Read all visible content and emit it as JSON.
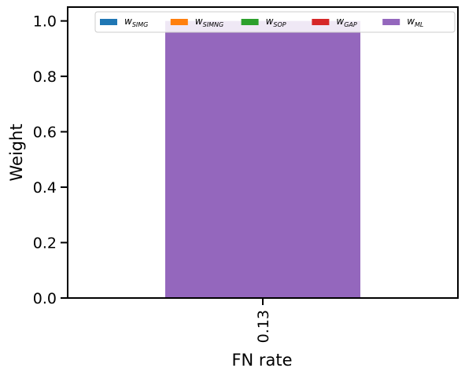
{
  "chart_data": {
    "type": "bar",
    "stacked": true,
    "categories": [
      "0.13"
    ],
    "series": [
      {
        "name": "SIMG",
        "values": [
          0
        ],
        "color": "#1f77b4"
      },
      {
        "name": "SIMNG",
        "values": [
          0
        ],
        "color": "#ff7f0e"
      },
      {
        "name": "SOP",
        "values": [
          0
        ],
        "color": "#2ca02c"
      },
      {
        "name": "GAP",
        "values": [
          0
        ],
        "color": "#d62728"
      },
      {
        "name": "ML",
        "values": [
          1.0
        ],
        "color": "#9467bd"
      }
    ],
    "legend_symbol": "w",
    "legend_placement": "top",
    "legend_columns": 5,
    "title": "",
    "xlabel": "FN rate",
    "ylabel": "Weight",
    "ylim": [
      0,
      1.05
    ],
    "yticks": [
      "0.0",
      "0.2",
      "0.4",
      "0.6",
      "0.8",
      "1.0"
    ],
    "grid": false
  }
}
